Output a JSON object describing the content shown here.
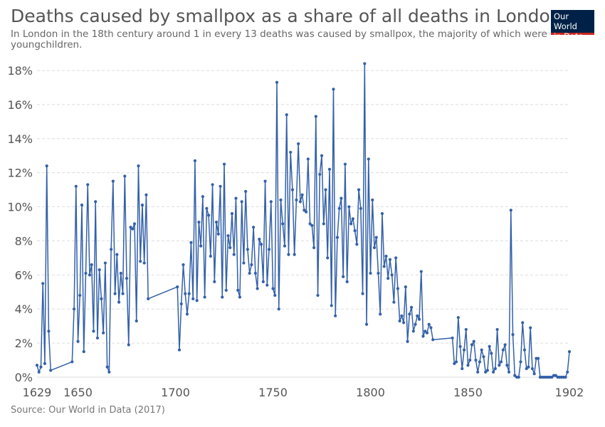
{
  "title": "Deaths caused by smallpox as a share of all deaths in London",
  "subtitle": "In London in the 18th century around 1 in every 13 deaths was caused by smallpox, the majority of which were youngchildren.",
  "logo": {
    "line1": "Our World",
    "line2": "in Data"
  },
  "source": "Source: Our World in Data (2017)",
  "colors": {
    "series": "#3360a9",
    "grid": "#dddddd",
    "text": "#555555",
    "logo_bg": "#002147",
    "logo_accent": "#ce261e"
  },
  "chart_data": {
    "type": "line",
    "title": "Deaths caused by smallpox as a share of all deaths in London",
    "xlabel": "",
    "ylabel": "",
    "xlim": [
      1629,
      1902
    ],
    "ylim": [
      0,
      18
    ],
    "grid": true,
    "x_ticks": [
      {
        "value": 1629,
        "label": "1629"
      },
      {
        "value": 1650,
        "label": "1650"
      },
      {
        "value": 1700,
        "label": "1700"
      },
      {
        "value": 1750,
        "label": "1750"
      },
      {
        "value": 1800,
        "label": "1800"
      },
      {
        "value": 1850,
        "label": "1850"
      },
      {
        "value": 1902,
        "label": "1902"
      }
    ],
    "y_ticks": [
      {
        "value": 0,
        "label": "0%"
      },
      {
        "value": 2,
        "label": "2%"
      },
      {
        "value": 4,
        "label": "4%"
      },
      {
        "value": 6,
        "label": "6%"
      },
      {
        "value": 8,
        "label": "8%"
      },
      {
        "value": 10,
        "label": "10%"
      },
      {
        "value": 12,
        "label": "12%"
      },
      {
        "value": 14,
        "label": "14%"
      },
      {
        "value": 16,
        "label": "16%"
      },
      {
        "value": 18,
        "label": "18%"
      }
    ],
    "series": [
      {
        "points": [
          [
            1629,
            0.7
          ],
          [
            1630,
            0.3
          ],
          [
            1631,
            0.6
          ],
          [
            1632,
            5.5
          ],
          [
            1633,
            0.8
          ],
          [
            1634,
            12.4
          ],
          [
            1635,
            2.7
          ],
          [
            1636,
            0.4
          ],
          [
            1647,
            0.9
          ],
          [
            1648,
            4.0
          ],
          [
            1649,
            11.2
          ],
          [
            1650,
            2.1
          ],
          [
            1651,
            4.8
          ],
          [
            1652,
            10.1
          ],
          [
            1653,
            1.5
          ],
          [
            1654,
            6.1
          ],
          [
            1655,
            11.3
          ],
          [
            1656,
            6.0
          ],
          [
            1657,
            6.6
          ],
          [
            1658,
            2.7
          ],
          [
            1659,
            10.3
          ],
          [
            1660,
            2.3
          ],
          [
            1661,
            6.3
          ],
          [
            1662,
            4.6
          ],
          [
            1663,
            2.6
          ],
          [
            1664,
            6.7
          ],
          [
            1665,
            0.6
          ],
          [
            1666,
            0.3
          ],
          [
            1667,
            7.5
          ],
          [
            1668,
            11.5
          ],
          [
            1669,
            4.9
          ],
          [
            1670,
            7.2
          ],
          [
            1671,
            4.4
          ],
          [
            1672,
            6.1
          ],
          [
            1673,
            4.9
          ],
          [
            1674,
            11.8
          ],
          [
            1675,
            5.8
          ],
          [
            1676,
            1.9
          ],
          [
            1677,
            8.8
          ],
          [
            1678,
            8.7
          ],
          [
            1679,
            9.0
          ],
          [
            1680,
            3.3
          ],
          [
            1681,
            12.4
          ],
          [
            1682,
            6.8
          ],
          [
            1683,
            10.1
          ],
          [
            1684,
            6.7
          ],
          [
            1685,
            10.7
          ],
          [
            1686,
            4.6
          ],
          [
            1701,
            5.3
          ],
          [
            1702,
            1.6
          ],
          [
            1703,
            4.3
          ],
          [
            1704,
            6.6
          ],
          [
            1705,
            4.9
          ],
          [
            1706,
            3.7
          ],
          [
            1707,
            4.9
          ],
          [
            1708,
            7.9
          ],
          [
            1709,
            4.6
          ],
          [
            1710,
            12.7
          ],
          [
            1711,
            4.5
          ],
          [
            1712,
            9.1
          ],
          [
            1713,
            7.7
          ],
          [
            1714,
            10.6
          ],
          [
            1715,
            4.7
          ],
          [
            1716,
            9.9
          ],
          [
            1717,
            9.5
          ],
          [
            1718,
            7.1
          ],
          [
            1719,
            11.3
          ],
          [
            1720,
            5.6
          ],
          [
            1721,
            9.1
          ],
          [
            1722,
            8.4
          ],
          [
            1723,
            11.2
          ],
          [
            1724,
            4.7
          ],
          [
            1725,
            12.5
          ],
          [
            1726,
            5.1
          ],
          [
            1727,
            8.3
          ],
          [
            1728,
            7.6
          ],
          [
            1729,
            9.6
          ],
          [
            1730,
            7.2
          ],
          [
            1731,
            10.5
          ],
          [
            1732,
            5.1
          ],
          [
            1733,
            4.7
          ],
          [
            1734,
            10.3
          ],
          [
            1735,
            6.7
          ],
          [
            1736,
            10.9
          ],
          [
            1737,
            7.5
          ],
          [
            1738,
            6.1
          ],
          [
            1739,
            6.6
          ],
          [
            1740,
            8.8
          ],
          [
            1741,
            6.1
          ],
          [
            1742,
            5.2
          ],
          [
            1743,
            8.1
          ],
          [
            1744,
            7.8
          ],
          [
            1745,
            5.6
          ],
          [
            1746,
            11.5
          ],
          [
            1747,
            5.4
          ],
          [
            1748,
            7.5
          ],
          [
            1749,
            10.3
          ],
          [
            1750,
            5.2
          ],
          [
            1751,
            4.8
          ],
          [
            1752,
            17.3
          ],
          [
            1753,
            4.0
          ],
          [
            1754,
            10.4
          ],
          [
            1755,
            9.0
          ],
          [
            1756,
            7.7
          ],
          [
            1757,
            15.4
          ],
          [
            1758,
            7.2
          ],
          [
            1759,
            13.2
          ],
          [
            1760,
            11.0
          ],
          [
            1761,
            7.2
          ],
          [
            1762,
            10.4
          ],
          [
            1763,
            13.7
          ],
          [
            1764,
            10.3
          ],
          [
            1765,
            10.7
          ],
          [
            1766,
            9.8
          ],
          [
            1767,
            9.7
          ],
          [
            1768,
            12.8
          ],
          [
            1769,
            9.0
          ],
          [
            1770,
            8.9
          ],
          [
            1771,
            7.6
          ],
          [
            1772,
            15.3
          ],
          [
            1773,
            4.8
          ],
          [
            1774,
            11.9
          ],
          [
            1775,
            13.0
          ],
          [
            1776,
            9.0
          ],
          [
            1777,
            11.0
          ],
          [
            1778,
            7.0
          ],
          [
            1779,
            12.2
          ],
          [
            1780,
            4.2
          ],
          [
            1781,
            16.9
          ],
          [
            1782,
            3.6
          ],
          [
            1783,
            8.2
          ],
          [
            1784,
            9.9
          ],
          [
            1785,
            10.5
          ],
          [
            1786,
            5.9
          ],
          [
            1787,
            12.5
          ],
          [
            1788,
            5.6
          ],
          [
            1789,
            10.0
          ],
          [
            1790,
            9.0
          ],
          [
            1791,
            9.3
          ],
          [
            1792,
            8.6
          ],
          [
            1793,
            7.8
          ],
          [
            1794,
            11.0
          ],
          [
            1795,
            9.9
          ],
          [
            1796,
            4.9
          ],
          [
            1797,
            18.4
          ],
          [
            1798,
            3.1
          ],
          [
            1799,
            12.8
          ],
          [
            1800,
            6.1
          ],
          [
            1801,
            10.4
          ],
          [
            1802,
            7.6
          ],
          [
            1803,
            8.2
          ],
          [
            1804,
            6.1
          ],
          [
            1805,
            3.7
          ],
          [
            1806,
            9.6
          ],
          [
            1807,
            6.5
          ],
          [
            1808,
            7.1
          ],
          [
            1809,
            5.8
          ],
          [
            1810,
            6.9
          ],
          [
            1811,
            6.0
          ],
          [
            1812,
            4.4
          ],
          [
            1813,
            7.0
          ],
          [
            1814,
            5.2
          ],
          [
            1815,
            3.3
          ],
          [
            1816,
            3.6
          ],
          [
            1817,
            3.2
          ],
          [
            1818,
            5.3
          ],
          [
            1819,
            2.1
          ],
          [
            1820,
            3.7
          ],
          [
            1821,
            4.1
          ],
          [
            1822,
            2.7
          ],
          [
            1823,
            3.1
          ],
          [
            1824,
            3.6
          ],
          [
            1825,
            3.4
          ],
          [
            1826,
            6.2
          ],
          [
            1827,
            2.4
          ],
          [
            1828,
            2.7
          ],
          [
            1829,
            2.6
          ],
          [
            1830,
            3.1
          ],
          [
            1831,
            2.9
          ],
          [
            1832,
            2.2
          ],
          [
            1842,
            2.3
          ],
          [
            1843,
            0.8
          ],
          [
            1844,
            0.9
          ],
          [
            1845,
            3.5
          ],
          [
            1846,
            1.8
          ],
          [
            1847,
            0.5
          ],
          [
            1848,
            1.6
          ],
          [
            1849,
            2.8
          ],
          [
            1850,
            0.7
          ],
          [
            1851,
            1.0
          ],
          [
            1852,
            1.9
          ],
          [
            1853,
            2.1
          ],
          [
            1854,
            1.0
          ],
          [
            1855,
            0.3
          ],
          [
            1856,
            0.9
          ],
          [
            1857,
            1.6
          ],
          [
            1858,
            1.2
          ],
          [
            1859,
            0.3
          ],
          [
            1860,
            0.4
          ],
          [
            1861,
            1.8
          ],
          [
            1862,
            1.4
          ],
          [
            1863,
            0.3
          ],
          [
            1864,
            0.5
          ],
          [
            1865,
            2.8
          ],
          [
            1866,
            0.7
          ],
          [
            1867,
            0.9
          ],
          [
            1868,
            1.6
          ],
          [
            1869,
            1.9
          ],
          [
            1870,
            0.7
          ],
          [
            1871,
            0.3
          ],
          [
            1872,
            9.8
          ],
          [
            1873,
            2.5
          ],
          [
            1874,
            0.1
          ],
          [
            1875,
            0.0
          ],
          [
            1876,
            0.0
          ],
          [
            1877,
            0.9
          ],
          [
            1878,
            3.2
          ],
          [
            1879,
            1.6
          ],
          [
            1880,
            0.5
          ],
          [
            1881,
            0.6
          ],
          [
            1882,
            2.9
          ],
          [
            1883,
            0.5
          ],
          [
            1884,
            0.2
          ],
          [
            1885,
            1.1
          ],
          [
            1886,
            1.1
          ],
          [
            1887,
            0.0
          ],
          [
            1888,
            0.0
          ],
          [
            1889,
            0.0
          ],
          [
            1890,
            0.0
          ],
          [
            1891,
            0.0
          ],
          [
            1892,
            0.0
          ],
          [
            1893,
            0.0
          ],
          [
            1894,
            0.1
          ],
          [
            1895,
            0.1
          ],
          [
            1896,
            0.0
          ],
          [
            1897,
            0.0
          ],
          [
            1898,
            0.0
          ],
          [
            1899,
            0.0
          ],
          [
            1900,
            0.0
          ],
          [
            1901,
            0.3
          ],
          [
            1902,
            1.5
          ]
        ]
      }
    ]
  }
}
